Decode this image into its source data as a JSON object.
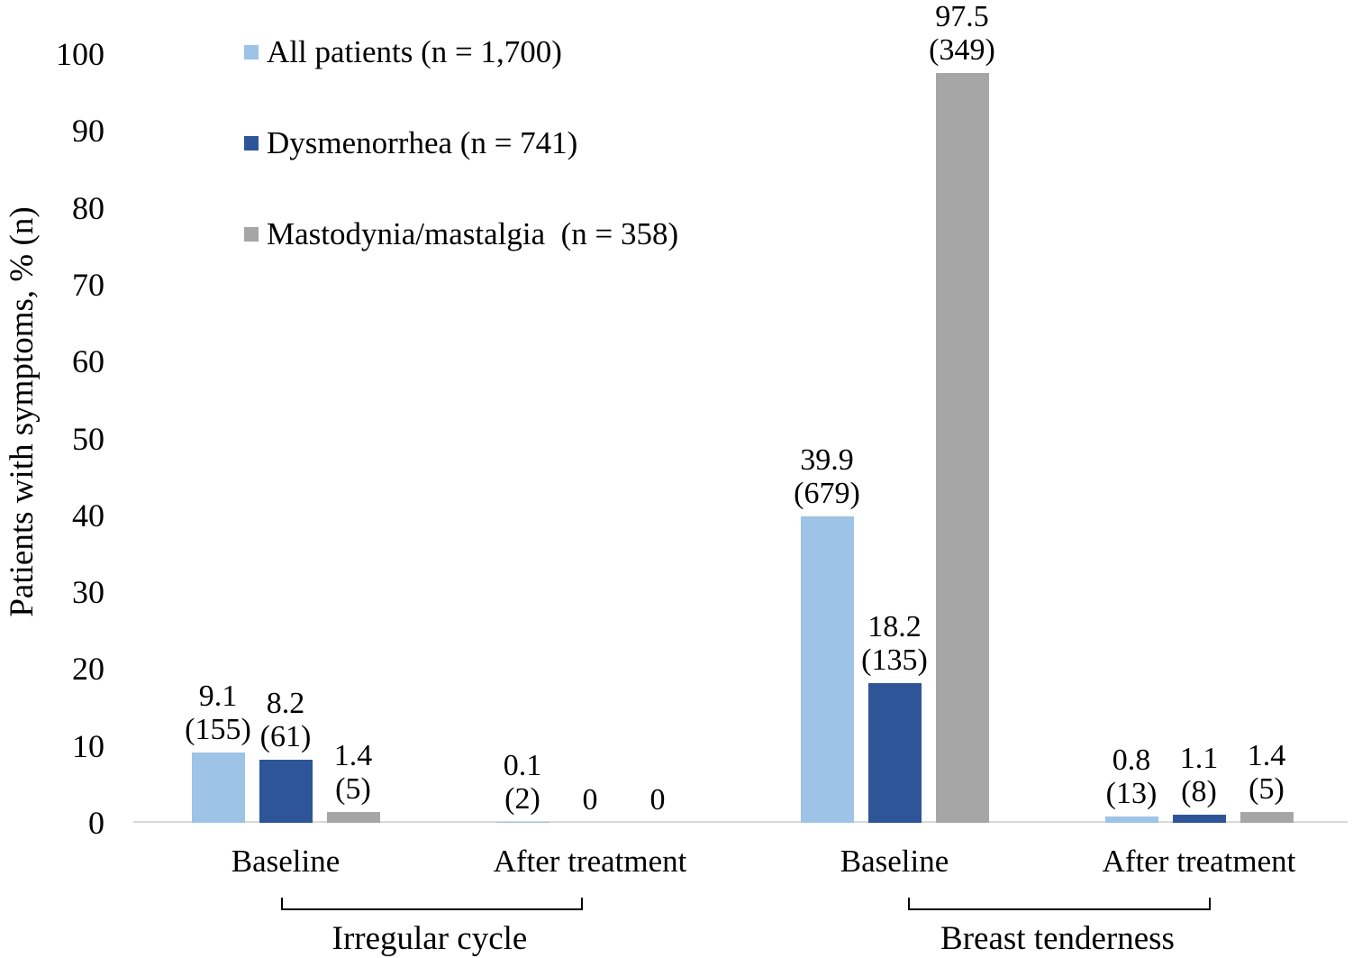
{
  "chart_data": {
    "type": "bar",
    "title": "",
    "ylabel": "Patients with symptoms, % (n)",
    "xlabel": "",
    "ylim": [
      0,
      100
    ],
    "yticks": [
      0,
      10,
      20,
      30,
      40,
      50,
      60,
      70,
      80,
      90,
      100
    ],
    "grid": false,
    "legend_position": "upper-left-inside",
    "axis_line_color": "#d9d9d9",
    "text_color": "#000000",
    "categories": [
      "Baseline",
      "After treatment",
      "Baseline",
      "After treatment"
    ],
    "groups": [
      {
        "label": "Irregular cycle",
        "categories": [
          "Baseline",
          "After treatment"
        ]
      },
      {
        "label": "Breast tenderness",
        "categories": [
          "Baseline",
          "After treatment"
        ]
      }
    ],
    "series": [
      {
        "name": "All patients (n = 1,700)",
        "color": "#9dc3e6",
        "values": [
          9.1,
          0.1,
          39.9,
          0.8
        ],
        "counts": [
          155,
          2,
          679,
          13
        ]
      },
      {
        "name": "Dysmenorrhea (n = 741)",
        "color": "#2e5597",
        "values": [
          8.2,
          0,
          18.2,
          1.1
        ],
        "counts": [
          61,
          null,
          135,
          8
        ]
      },
      {
        "name": "Mastodynia/mastalgia  (n = 358)",
        "color": "#a6a6a6",
        "values": [
          1.4,
          0,
          97.5,
          1.4
        ],
        "counts": [
          5,
          null,
          349,
          5
        ]
      }
    ],
    "data_labels": [
      [
        "9.1 (155)",
        "0.1 (2)",
        "39.9 (679)",
        "0.8 (13)"
      ],
      [
        "8.2 (61)",
        "0",
        "18.2 (135)",
        "1.1 (8)"
      ],
      [
        "1.4 (5)",
        "0",
        "97.5 (349)",
        "1.4 (5)"
      ]
    ]
  }
}
